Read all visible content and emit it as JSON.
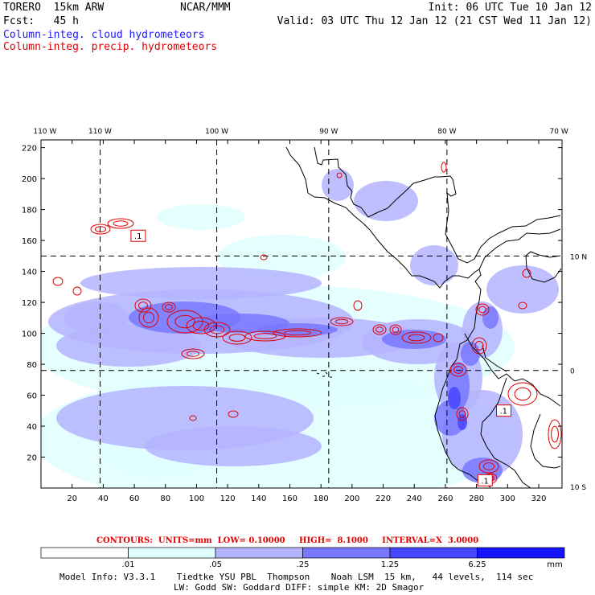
{
  "header": {
    "model_line": "TORERO  15km ARW",
    "fcst_line": "Fcst:   45 h",
    "center": "NCAR/MMM",
    "init": "Init: 06 UTC Tue 10 Jan 12",
    "valid": "Valid: 03 UTC Thu 12 Jan 12 (21 CST Wed 11 Jan 12)",
    "field1": "Column-integ. cloud hydrometeors",
    "field2": "Column-integ. precip. hydrometeors"
  },
  "contour_info": {
    "text": "CONTOURS:  UNITS=mm  LOW= 0.10000     HIGH=  8.1000     INTERVAL=X  3.0000"
  },
  "model_info": {
    "line1": "Model Info: V3.3.1    Tiedtke YSU PBL  Thompson    Noah LSM  15 km,   44 levels,  114 sec",
    "line2": "LW: Godd SW: Goddard DIFF: simple KM: 2D Smagor"
  },
  "colors": {
    "cloud_light": "#e0ffff",
    "cloud_mid": "#b4b4ff",
    "cloud_dark": "#7878ff",
    "cloud_deep": "#4646ff",
    "cloud_max": "#1414ff",
    "precip_contour": "#e00000",
    "coast": "#000000"
  },
  "chart_data": {
    "type": "heatmap",
    "title": "Column-integ. cloud hydrometeors",
    "xlabel": "",
    "ylabel": "",
    "xlim": [
      0,
      335
    ],
    "ylim": [
      0,
      225
    ],
    "x_ticks": [
      20,
      40,
      60,
      80,
      100,
      120,
      140,
      160,
      180,
      200,
      220,
      240,
      260,
      280,
      300,
      320
    ],
    "y_ticks": [
      20,
      40,
      60,
      80,
      100,
      120,
      140,
      160,
      180,
      200,
      220
    ],
    "lon_labels": [
      {
        "x": 2.5,
        "text": "110 W"
      },
      {
        "x": 38,
        "text": "110 W"
      },
      {
        "x": 113,
        "text": "100 W"
      },
      {
        "x": 185,
        "text": "90 W"
      },
      {
        "x": 261,
        "text": "80 W"
      },
      {
        "x": 333,
        "text": "70 W"
      }
    ],
    "lat_labels": [
      {
        "y": 150,
        "text": "10 N"
      },
      {
        "y": 76,
        "text": "0"
      },
      {
        "y": 1,
        "text": "10 S"
      }
    ],
    "grid_lines": {
      "x": [
        38,
        113,
        185,
        261
      ],
      "y": [
        76,
        150
      ]
    },
    "colorbar": {
      "unit": "mm",
      "labels": [
        ".01",
        ".05",
        ".25",
        "1.25",
        "6.25"
      ],
      "colors": [
        "#ffffff",
        "#e0ffff",
        "#b4b4ff",
        "#7878ff",
        "#4646ff",
        "#1414ff"
      ]
    },
    "contour_labels": [
      {
        "x": 62,
        "y": 162,
        "text": ".1"
      },
      {
        "x": 297,
        "y": 49,
        "text": ".1"
      },
      {
        "x": 285,
        "y": 4,
        "text": ".1"
      }
    ]
  }
}
